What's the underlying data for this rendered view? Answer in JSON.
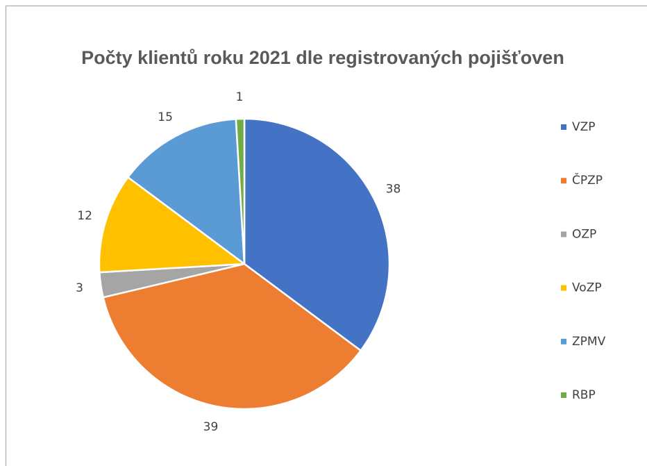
{
  "chart_data": {
    "type": "pie",
    "title": "Počty klientů roku 2021 dle registrovaných pojišťoven",
    "categories": [
      "VZP",
      "ČPZP",
      "OZP",
      "VoZP",
      "ZPMV",
      "RBP"
    ],
    "values": [
      38,
      39,
      3,
      12,
      15,
      1
    ],
    "colors": [
      "#4472c4",
      "#ed7d31",
      "#a5a5a5",
      "#ffc000",
      "#5b9bd5",
      "#70ad47"
    ],
    "legend": "right"
  }
}
